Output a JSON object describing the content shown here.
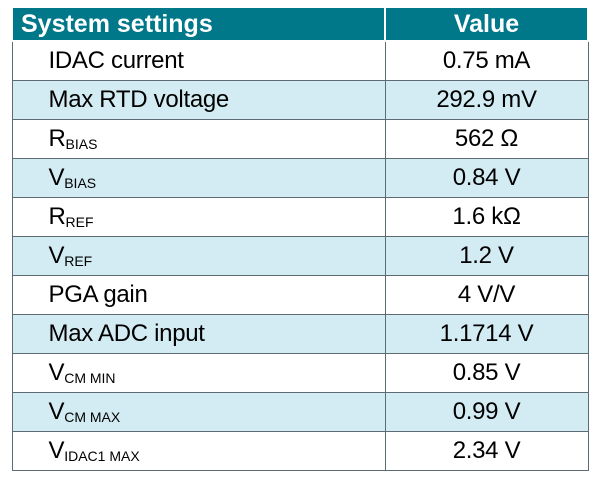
{
  "table": {
    "headers": [
      "System settings",
      "Value"
    ],
    "rows": [
      {
        "name_main": "IDAC current",
        "name_sub": "",
        "value": "0.75 mA"
      },
      {
        "name_main": "Max RTD voltage",
        "name_sub": "",
        "value": "292.9 mV"
      },
      {
        "name_main": "R",
        "name_sub": "BIAS",
        "value": "562 Ω"
      },
      {
        "name_main": "V",
        "name_sub": "BIAS",
        "value": "0.84 V"
      },
      {
        "name_main": "R",
        "name_sub": "REF",
        "value": "1.6 kΩ"
      },
      {
        "name_main": "V",
        "name_sub": "REF",
        "value": "1.2 V"
      },
      {
        "name_main": "PGA gain",
        "name_sub": "",
        "value": "4 V/V"
      },
      {
        "name_main": "Max ADC input",
        "name_sub": "",
        "value": "1.1714 V"
      },
      {
        "name_main": "V",
        "name_sub": "CM MIN",
        "value": "0.85 V"
      },
      {
        "name_main": "V",
        "name_sub": "CM MAX",
        "value": "0.99 V"
      },
      {
        "name_main": "V",
        "name_sub": "IDAC1 MAX",
        "value": "2.34 V"
      }
    ]
  },
  "colors": {
    "header_bg": "#00788a",
    "header_text": "#ffffff",
    "stripe_bg": "#d3ecf4",
    "row_bg": "#ffffff",
    "border": "#5d6b73"
  }
}
